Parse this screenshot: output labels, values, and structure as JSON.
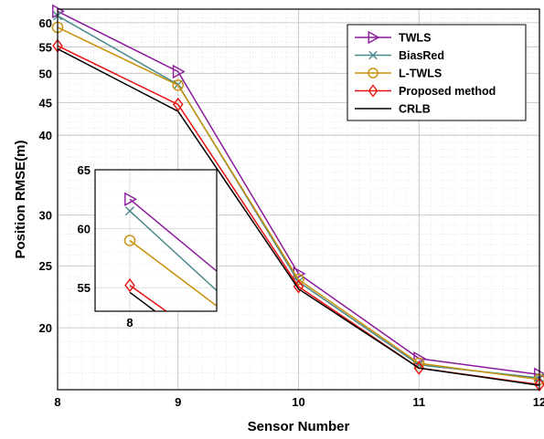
{
  "chart_data": {
    "type": "line",
    "title": "",
    "xlabel": "Sensor Number",
    "ylabel": "Position RMSE(m)",
    "x": [
      8,
      9,
      10,
      11,
      12
    ],
    "xlim": [
      8,
      12
    ],
    "ylim": [
      16,
      63
    ],
    "yscale": "log",
    "grid": true,
    "minor_grid": true,
    "xticks": [
      "8",
      "9",
      "10",
      "11",
      "12"
    ],
    "yticks": [
      {
        "value": 20,
        "label": "20"
      },
      {
        "value": 25,
        "label": "25"
      },
      {
        "value": 30,
        "label": "30"
      },
      {
        "value": 40,
        "label": "40"
      },
      {
        "value": 45,
        "label": "45"
      },
      {
        "value": 50,
        "label": "50"
      },
      {
        "value": 55,
        "label": "55"
      },
      {
        "value": 60,
        "label": "60"
      }
    ],
    "legend_position": "top-right",
    "series": [
      {
        "name": "TWLS",
        "color": "#8B1A9B",
        "marker": "triangle-right",
        "values": [
          62.5,
          50.3,
          24.3,
          17.9,
          16.9
        ]
      },
      {
        "name": "BiasRed",
        "color": "#4A8A8C",
        "marker": "x",
        "values": [
          61.5,
          48.0,
          23.6,
          17.5,
          16.7
        ]
      },
      {
        "name": "L-TWLS",
        "color": "#C8900A",
        "marker": "circle",
        "values": [
          59.0,
          47.9,
          23.8,
          17.6,
          16.6
        ]
      },
      {
        "name": "Proposed method",
        "color": "#EE1111",
        "marker": "diamond",
        "values": [
          55.2,
          44.7,
          23.2,
          17.3,
          16.3
        ]
      },
      {
        "name": "CRLB",
        "color": "#000000",
        "marker": "none",
        "values": [
          54.6,
          43.6,
          23.0,
          17.3,
          16.25
        ]
      }
    ],
    "inset": {
      "x_label": "8",
      "xlim": [
        7.8,
        8.5
      ],
      "ylim": [
        53,
        65
      ],
      "yticks": [
        {
          "value": 55,
          "label": "55"
        },
        {
          "value": 60,
          "label": "60"
        },
        {
          "value": 65,
          "label": "65"
        }
      ]
    }
  }
}
